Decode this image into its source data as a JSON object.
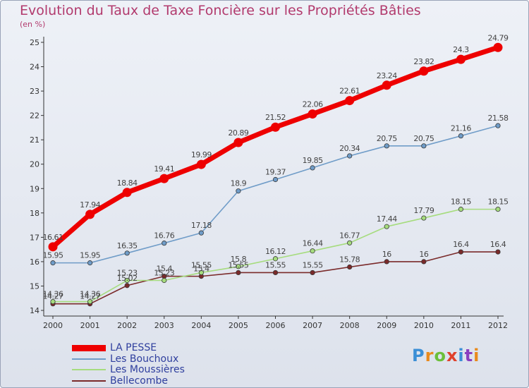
{
  "title": "Evolution du Taux de Taxe Foncière sur les Propriétés Bâties",
  "subtitle": "(en %)",
  "logo": "Proxiti",
  "chart_data": {
    "type": "line",
    "title": "Evolution du Taux de Taxe Foncière sur les Propriétés Bâties",
    "subtitle": "(en %)",
    "x": [
      "2000",
      "2001",
      "2002",
      "2003",
      "2004",
      "2005",
      "2006",
      "2007",
      "2008",
      "2009",
      "2010",
      "2011",
      "2012"
    ],
    "ylim": [
      14,
      25
    ],
    "yticks": [
      14,
      15,
      16,
      17,
      18,
      19,
      20,
      21,
      22,
      23,
      24,
      25
    ],
    "grid": false,
    "legend_position": "bottom-left",
    "series": [
      {
        "name": "LA PESSE",
        "color": "#ee0000",
        "values": [
          16.61,
          17.94,
          18.84,
          19.41,
          19.99,
          20.89,
          21.52,
          22.06,
          22.61,
          23.24,
          23.82,
          24.3,
          24.79
        ],
        "labels": [
          "16.61",
          "17.94",
          "18.84",
          "19.41",
          "19.99",
          "20.89",
          "21.52",
          "22.06",
          "22.61",
          "23.24",
          "23.82",
          "24.3",
          "24.79"
        ]
      },
      {
        "name": "Les Bouchoux",
        "color": "#6f9cc8",
        "values": [
          15.95,
          15.95,
          16.35,
          16.76,
          17.18,
          18.9,
          19.37,
          19.85,
          20.34,
          20.75,
          20.75,
          21.16,
          21.58
        ],
        "labels": [
          "15.95",
          "15.95",
          "16.35",
          "16.76",
          "17.18",
          "18.9",
          "19.37",
          "19.85",
          "20.34",
          "20.75",
          "20.75",
          "21.16",
          "21.58"
        ]
      },
      {
        "name": "Les Moussières",
        "color": "#a6dc7e",
        "values": [
          14.36,
          14.36,
          15.23,
          15.23,
          15.55,
          15.8,
          16.12,
          16.44,
          16.77,
          17.44,
          17.79,
          18.15,
          18.15
        ],
        "labels": [
          "14.36",
          "14.36",
          "15.23",
          "15.23",
          "15.55",
          "15.8",
          "16.12",
          "16.44",
          "16.77",
          "17.44",
          "17.79",
          "18.15",
          "18.15"
        ]
      },
      {
        "name": "Bellecombe",
        "color": "#7a2a2a",
        "values": [
          14.27,
          14.27,
          15.02,
          15.4,
          15.4,
          15.55,
          15.55,
          15.55,
          15.78,
          16,
          16,
          16.4,
          16.4
        ],
        "labels": [
          "14.27",
          "14.27",
          "15.02",
          "15.4",
          "15.4",
          "15.55",
          "15.55",
          "15.55",
          "15.78",
          "16",
          "16",
          "16.4",
          "16.4"
        ]
      }
    ]
  }
}
